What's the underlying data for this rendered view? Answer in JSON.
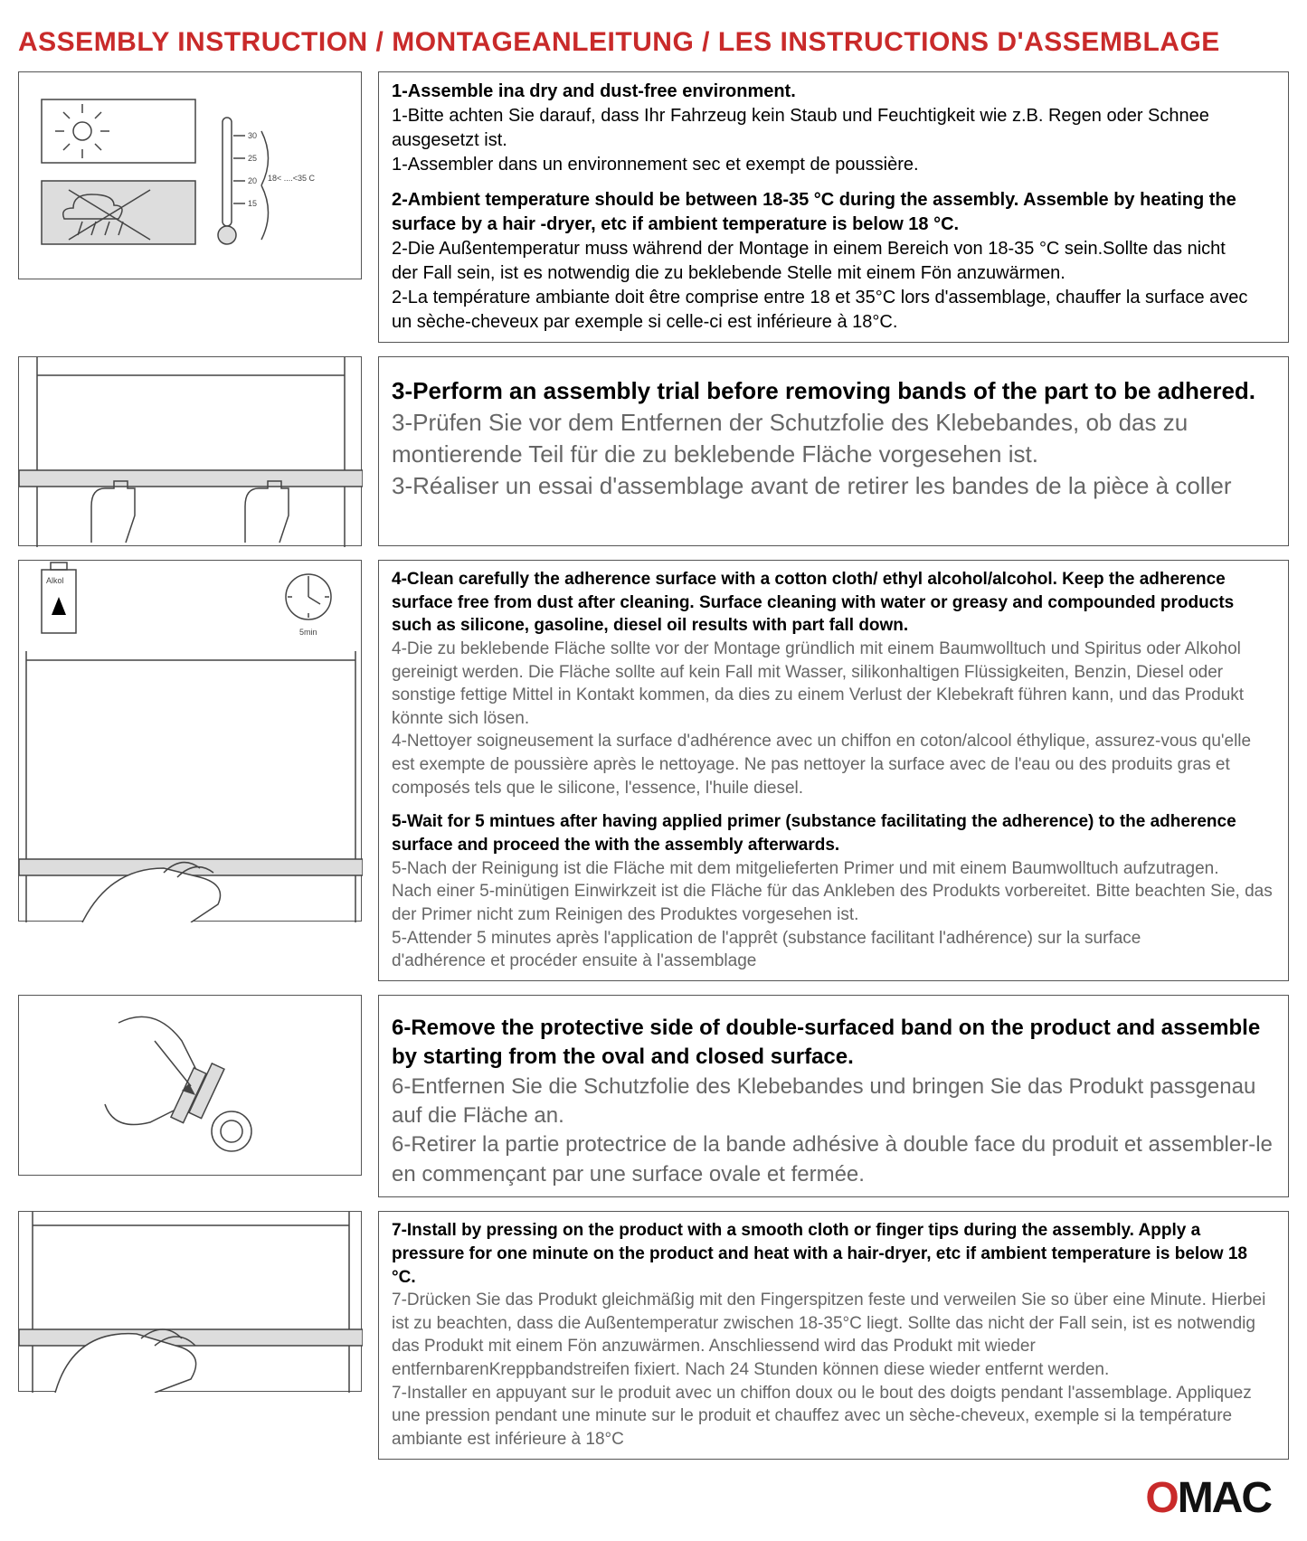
{
  "title": "ASSEMBLY INSTRUCTION / MONTAGEANLEITUNG / LES INSTRUCTIONS D'ASSEMBLAGE",
  "colors": {
    "title": "#c92a2a",
    "border": "#555555",
    "body_text": "#000000",
    "secondary_text": "#666666",
    "logo_black": "#111111",
    "logo_red": "#c92a2a",
    "background": "#ffffff"
  },
  "sections": [
    {
      "id": "s1",
      "illus_w": 380,
      "illus_h": 230,
      "illus_label": "18< ....<35 C",
      "lines": [
        {
          "bold": true,
          "grey": false,
          "text": "1-Assemble ina dry and dust-free environment."
        },
        {
          "bold": false,
          "grey": false,
          "text": "1-Bitte achten Sie darauf, dass Ihr Fahrzeug kein Staub und Feuchtigkeit wie z.B. Regen oder Schnee ausgesetzt ist."
        },
        {
          "bold": false,
          "grey": false,
          "text": "1-Assembler dans un environnement sec et exempt de poussière."
        },
        {
          "spacer": true
        },
        {
          "bold": true,
          "grey": false,
          "text": "2-Ambient temperature should be between 18-35 °C  during the assembly. Assemble by heating the surface by a hair -dryer, etc if ambient temperature is below 18 °C."
        },
        {
          "bold": false,
          "grey": false,
          "text": "2-Die Außentemperatur muss während der Montage in einem Bereich von 18-35 °C  sein.Sollte das nicht"
        },
        {
          "bold": false,
          "grey": false,
          "text": "der Fall sein, ist es notwendig die zu beklebende Stelle mit einem Fön anzuwärmen."
        },
        {
          "bold": false,
          "grey": false,
          "text": "2-La température ambiante doit être comprise entre 18 et 35°C lors d'assemblage, chauffer la surface avec"
        },
        {
          "bold": false,
          "grey": false,
          "text": " un sèche-cheveux par exemple si celle-ci est inférieure à 18°C."
        }
      ]
    },
    {
      "id": "s2",
      "illus_w": 380,
      "illus_h": 210,
      "lines": [
        {
          "spacer": true
        },
        {
          "bold": true,
          "grey": false,
          "size": 26,
          "text": "3-Perform an assembly trial before removing bands of the part to be adhered."
        },
        {
          "bold": false,
          "grey": true,
          "size": 26,
          "text": "3-Prüfen Sie vor dem Entfernen der Schutzfolie des Klebebandes, ob das zu montierende Teil für die zu beklebende Fläche vorgesehen ist."
        },
        {
          "bold": false,
          "grey": true,
          "size": 26,
          "text": "3-Réaliser un essai d'assemblage avant de retirer les bandes de la pièce à coller"
        }
      ]
    },
    {
      "id": "s3",
      "illus_w": 380,
      "illus_h": 400,
      "illus_top_label_box": "Alkol",
      "illus_top_label_time": "5min",
      "lines": [
        {
          "bold": true,
          "grey": false,
          "text": "4-Clean carefully the adherence surface with a cotton cloth/ ethyl alcohol/alcohol. Keep the adherence surface free from dust after cleaning. Surface cleaning with water or greasy and compounded products such as silicone, gasoline, diesel oil results with part fall down."
        },
        {
          "bold": false,
          "grey": true,
          "text": "4-Die zu beklebende Fläche sollte vor der Montage gründlich mit einem Baumwolltuch und Spiritus oder Alkohol gereinigt werden. Die Fläche sollte auf kein Fall mit Wasser, silikonhaltigen Flüssigkeiten, Benzin, Diesel oder sonstige fettige Mittel in Kontakt kommen, da dies zu einem Verlust der Klebekraft führen kann, und das Produkt könnte sich lösen."
        },
        {
          "bold": false,
          "grey": true,
          "text": "4-Nettoyer soigneusement la surface d'adhérence avec un chiffon en coton/alcool éthylique, assurez-vous qu'elle est exempte de poussière après le nettoyage. Ne pas nettoyer la surface avec de l'eau ou des produits gras et composés tels que le silicone, l'essence, l'huile diesel."
        },
        {
          "spacer": true
        },
        {
          "bold": true,
          "grey": false,
          "text": "5-Wait for 5 mintues after having applied primer (substance facilitating the adherence) to the adherence surface and proceed the with the assembly afterwards."
        },
        {
          "bold": false,
          "grey": true,
          "text": "5-Nach der Reinigung ist die Fläche mit dem mitgelieferten Primer und mit einem Baumwolltuch aufzutragen."
        },
        {
          "bold": false,
          "grey": true,
          "text": "Nach einer 5-minütigen Einwirkzeit ist die Fläche für das Ankleben des Produkts vorbereitet. Bitte beachten Sie, das der Primer nicht zum Reinigen des Produktes vorgesehen ist."
        },
        {
          "bold": false,
          "grey": true,
          "text": "5-Attender 5 minutes après l'application de l'apprêt (substance facilitant l'adhérence) sur la surface"
        },
        {
          "bold": false,
          "grey": true,
          "text": "d'adhérence et procéder ensuite à l'assemblage"
        }
      ]
    },
    {
      "id": "s4",
      "illus_w": 380,
      "illus_h": 200,
      "lines": [
        {
          "spacer": true
        },
        {
          "bold": true,
          "grey": false,
          "size": 24,
          "text": "6-Remove the protective side of double-surfaced band on the product and assemble by starting from the oval and closed surface."
        },
        {
          "bold": false,
          "grey": true,
          "size": 24,
          "text": "6-Entfernen Sie die Schutzfolie des Klebebandes und bringen Sie das Produkt passgenau auf die Fläche an."
        },
        {
          "bold": false,
          "grey": true,
          "size": 24,
          "text": "6-Retirer la partie protectrice de la bande adhésive à double face du produit et assembler-le en commençant par une surface ovale et fermée."
        }
      ]
    },
    {
      "id": "s5",
      "illus_w": 380,
      "illus_h": 200,
      "lines": [
        {
          "bold": true,
          "grey": false,
          "text": "7-Install by pressing on the product with a smooth cloth or finger tips during the assembly. Apply a pressure for one minute on the product and heat with a hair-dryer, etc if ambient temperature is below 18 °C."
        },
        {
          "bold": false,
          "grey": true,
          "text": "7-Drücken Sie das Produkt gleichmäßig mit den Fingerspitzen feste und verweilen Sie so über eine Minute. Hierbei ist zu beachten, dass die Außentemperatur zwischen 18-35°C liegt. Sollte das nicht der Fall sein, ist es notwendig das Produkt mit einem Fön anzuwärmen. Anschliessend wird das Produkt mit wieder entfernbarenKreppbandstreifen fixiert. Nach 24 Stunden können diese wieder entfernt werden."
        },
        {
          "bold": false,
          "grey": true,
          "text": "7-Installer en appuyant sur le produit avec un chiffon doux ou le bout des doigts pendant l'assemblage. Appliquez"
        },
        {
          "bold": false,
          "grey": true,
          "text": " une pression pendant une minute sur le produit et chauffez avec un sèche-cheveux, exemple si la température ambiante est inférieure à 18°C"
        }
      ]
    }
  ],
  "logo": {
    "text1": "O",
    "text2": "MAC"
  },
  "thermometer_ticks": [
    "30",
    "25",
    "20",
    "15"
  ]
}
